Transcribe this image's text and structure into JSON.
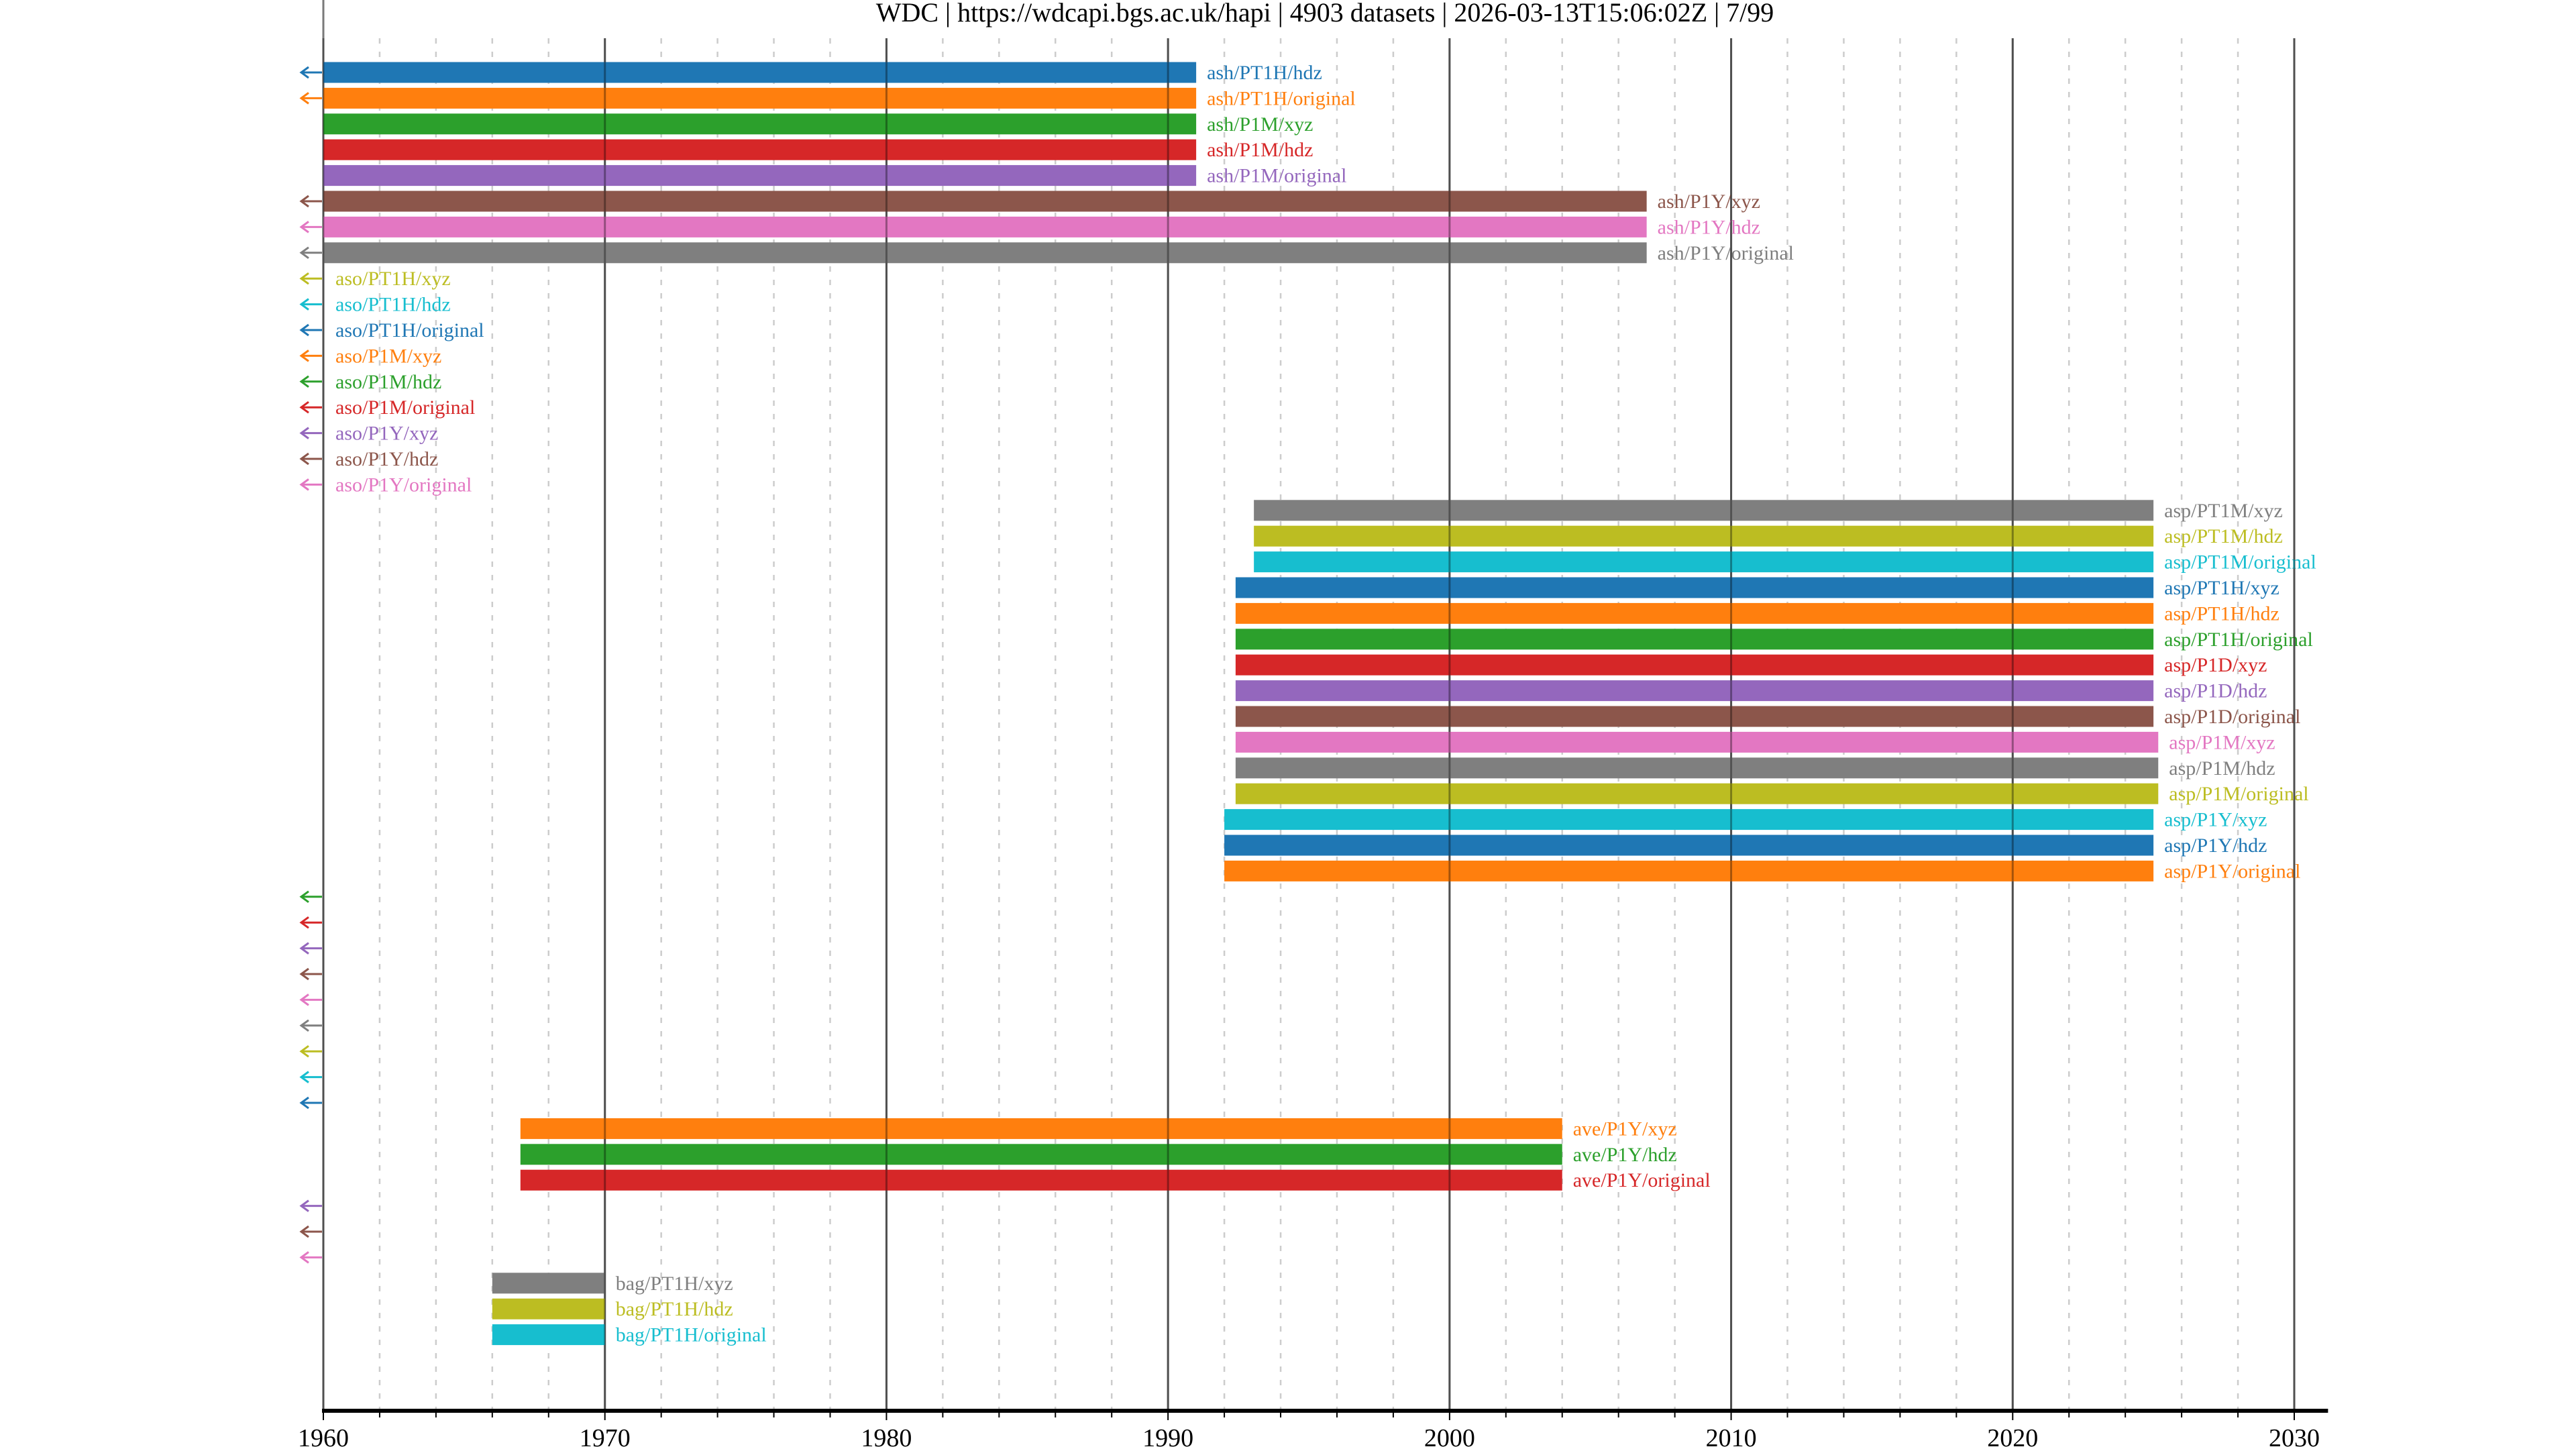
{
  "chart_data": {
    "type": "timeline",
    "title": "WDC | https://wdcapi.bgs.ac.uk/hapi | 4903 datasets | 2026-03-13T15:06:02Z | 7/99",
    "xlim": [
      1960,
      2031.2
    ],
    "x_ticks": [
      1960,
      1970,
      1980,
      1990,
      2000,
      2010,
      2020,
      2030
    ],
    "x_tick_labels": [
      "1960",
      "1970",
      "1980",
      "1990",
      "2000",
      "2010",
      "2020",
      "2030"
    ],
    "minor_tick_step_years": 2,
    "grid": true,
    "palette": [
      "#1f77b4",
      "#ff7f0e",
      "#2ca02c",
      "#d62728",
      "#9467bd",
      "#8c564b",
      "#e377c2",
      "#7f7f7f",
      "#bcbd22",
      "#17becf"
    ],
    "rows": [
      {
        "label": "ash/PT1H/hdz",
        "start": 1960,
        "stop": 1991,
        "arrow": true
      },
      {
        "label": "ash/PT1H/original",
        "start": 1960,
        "stop": 1991,
        "arrow": true
      },
      {
        "label": "ash/P1M/xyz",
        "start": 1960,
        "stop": 1991,
        "arrow": false
      },
      {
        "label": "ash/P1M/hdz",
        "start": 1960,
        "stop": 1991,
        "arrow": false
      },
      {
        "label": "ash/P1M/original",
        "start": 1960,
        "stop": 1991,
        "arrow": false
      },
      {
        "label": "ash/P1Y/xyz",
        "start": 1960,
        "stop": 2007,
        "arrow": true
      },
      {
        "label": "ash/P1Y/hdz",
        "start": 1960,
        "stop": 2007,
        "arrow": true
      },
      {
        "label": "ash/P1Y/original",
        "start": 1960,
        "stop": 2007,
        "arrow": true
      },
      {
        "label": "aso/PT1H/xyz",
        "start": null,
        "stop": null,
        "arrow": true
      },
      {
        "label": "aso/PT1H/hdz",
        "start": null,
        "stop": null,
        "arrow": true
      },
      {
        "label": "aso/PT1H/original",
        "start": null,
        "stop": null,
        "arrow": true
      },
      {
        "label": "aso/P1M/xyz",
        "start": null,
        "stop": null,
        "arrow": true
      },
      {
        "label": "aso/P1M/hdz",
        "start": null,
        "stop": null,
        "arrow": true
      },
      {
        "label": "aso/P1M/original",
        "start": null,
        "stop": null,
        "arrow": true
      },
      {
        "label": "aso/P1Y/xyz",
        "start": null,
        "stop": null,
        "arrow": true
      },
      {
        "label": "aso/P1Y/hdz",
        "start": null,
        "stop": null,
        "arrow": true
      },
      {
        "label": "aso/P1Y/original",
        "start": null,
        "stop": null,
        "arrow": true
      },
      {
        "label": "asp/PT1M/xyz",
        "start": 1993.05,
        "stop": 2025,
        "arrow": false
      },
      {
        "label": "asp/PT1M/hdz",
        "start": 1993.05,
        "stop": 2025,
        "arrow": false
      },
      {
        "label": "asp/PT1M/original",
        "start": 1993.05,
        "stop": 2025,
        "arrow": false
      },
      {
        "label": "asp/PT1H/xyz",
        "start": 1992.4,
        "stop": 2025,
        "arrow": false
      },
      {
        "label": "asp/PT1H/hdz",
        "start": 1992.4,
        "stop": 2025,
        "arrow": false
      },
      {
        "label": "asp/PT1H/original",
        "start": 1992.4,
        "stop": 2025,
        "arrow": false
      },
      {
        "label": "asp/P1D/xyz",
        "start": 1992.4,
        "stop": 2025,
        "arrow": false
      },
      {
        "label": "asp/P1D/hdz",
        "start": 1992.4,
        "stop": 2025,
        "arrow": false
      },
      {
        "label": "asp/P1D/original",
        "start": 1992.4,
        "stop": 2025,
        "arrow": false
      },
      {
        "label": "asp/P1M/xyz",
        "start": 1992.4,
        "stop": 2025.17,
        "arrow": false
      },
      {
        "label": "asp/P1M/hdz",
        "start": 1992.4,
        "stop": 2025.17,
        "arrow": false
      },
      {
        "label": "asp/P1M/original",
        "start": 1992.4,
        "stop": 2025.17,
        "arrow": false
      },
      {
        "label": "asp/P1Y/xyz",
        "start": 1992,
        "stop": 2025,
        "arrow": false
      },
      {
        "label": "asp/P1Y/hdz",
        "start": 1992,
        "stop": 2025,
        "arrow": false
      },
      {
        "label": "asp/P1Y/original",
        "start": 1992,
        "stop": 2025,
        "arrow": false
      },
      {
        "label": null,
        "start": null,
        "stop": null,
        "arrow": true
      },
      {
        "label": null,
        "start": null,
        "stop": null,
        "arrow": true
      },
      {
        "label": null,
        "start": null,
        "stop": null,
        "arrow": true
      },
      {
        "label": null,
        "start": null,
        "stop": null,
        "arrow": true
      },
      {
        "label": null,
        "start": null,
        "stop": null,
        "arrow": true
      },
      {
        "label": null,
        "start": null,
        "stop": null,
        "arrow": true
      },
      {
        "label": null,
        "start": null,
        "stop": null,
        "arrow": true
      },
      {
        "label": null,
        "start": null,
        "stop": null,
        "arrow": true
      },
      {
        "label": null,
        "start": null,
        "stop": null,
        "arrow": true
      },
      {
        "label": "ave/P1Y/xyz",
        "start": 1967,
        "stop": 2004,
        "arrow": false
      },
      {
        "label": "ave/P1Y/hdz",
        "start": 1967,
        "stop": 2004,
        "arrow": false
      },
      {
        "label": "ave/P1Y/original",
        "start": 1967,
        "stop": 2004,
        "arrow": false
      },
      {
        "label": null,
        "start": null,
        "stop": null,
        "arrow": true
      },
      {
        "label": null,
        "start": null,
        "stop": null,
        "arrow": true
      },
      {
        "label": null,
        "start": null,
        "stop": null,
        "arrow": true
      },
      {
        "label": "bag/PT1H/xyz",
        "start": 1966,
        "stop": 1970,
        "arrow": false
      },
      {
        "label": "bag/PT1H/hdz",
        "start": 1966,
        "stop": 1970,
        "arrow": false
      },
      {
        "label": "bag/PT1H/original",
        "start": 1966,
        "stop": 1970,
        "arrow": false
      }
    ]
  }
}
